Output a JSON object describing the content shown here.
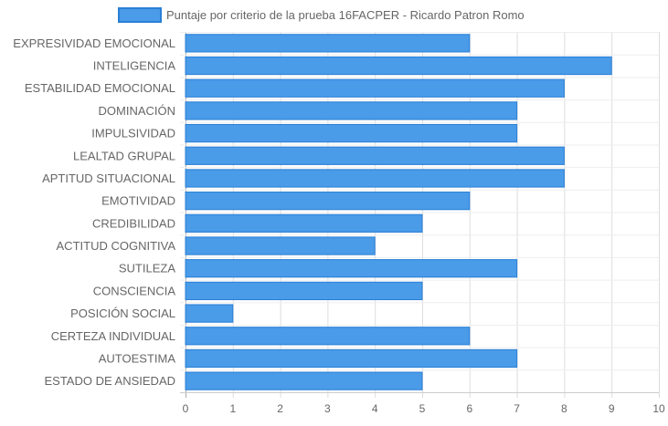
{
  "chart_data": {
    "type": "bar",
    "orientation": "horizontal",
    "legend": {
      "position": "top",
      "label": "Puntaje por criterio de la prueba 16FACPER - Ricardo Patron Romo"
    },
    "categories": [
      "EXPRESIVIDAD EMOCIONAL",
      "INTELIGENCIA",
      "ESTABILIDAD EMOCIONAL",
      "DOMINACIÓN",
      "IMPULSIVIDAD",
      "LEALTAD GRUPAL",
      "APTITUD SITUACIONAL",
      "EMOTIVIDAD",
      "CREDIBILIDAD",
      "ACTITUD COGNITIVA",
      "SUTILEZA",
      "CONSCIENCIA",
      "POSICIÓN SOCIAL",
      "CERTEZA INDIVIDUAL",
      "AUTOESTIMA",
      "ESTADO DE ANSIEDAD"
    ],
    "series": [
      {
        "name": "Puntaje por criterio de la prueba 16FACPER - Ricardo Patron Romo",
        "values": [
          6,
          9,
          8,
          7,
          7,
          8,
          8,
          6,
          5,
          4,
          7,
          5,
          1,
          6,
          7,
          5
        ],
        "color": "#4a9be8",
        "border_color": "#2a7fd6"
      }
    ],
    "x_ticks": [
      "0",
      "1",
      "2",
      "3",
      "4",
      "5",
      "6",
      "7",
      "8",
      "9",
      "10"
    ],
    "xlim": [
      0,
      10
    ],
    "grid": true,
    "xlabel": "",
    "ylabel": ""
  }
}
